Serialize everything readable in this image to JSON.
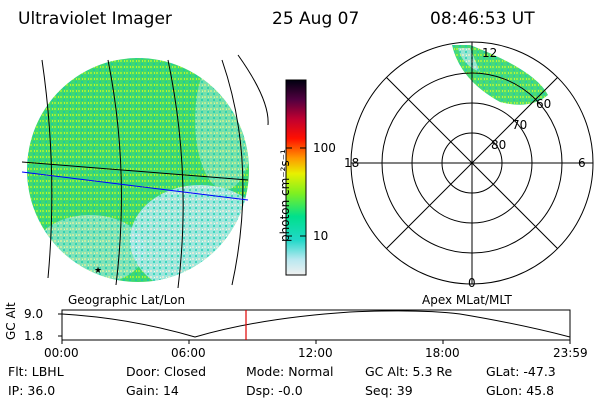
{
  "header": {
    "instrument": "Ultraviolet Imager",
    "date": "25 Aug 07",
    "time": "08:46:53 UT"
  },
  "colorbar": {
    "unit_label": "photon cm⁻²s⁻¹",
    "ticks": [
      "100",
      "10"
    ],
    "scale": "log",
    "colors": [
      "#e0e0e0",
      "#00c8c8",
      "#00e08c",
      "#80ff20",
      "#e8f000",
      "#ff9000",
      "#ff0000",
      "#b00030",
      "#400040",
      "#000000"
    ]
  },
  "left_panel": {
    "label": "Geographic Lat/Lon",
    "marker": "★"
  },
  "polar_panel": {
    "label": "Apex MLat/MLT",
    "mlt_labels": {
      "top": "12",
      "left": "18",
      "right": "6",
      "bottom": "0"
    },
    "lat_labels": [
      "80",
      "70",
      "60"
    ]
  },
  "altitude_plot": {
    "ylabel": "GC Alt",
    "y_ticks": [
      "9.0",
      "1.8"
    ],
    "x_ticks": [
      "00:00",
      "06:00",
      "12:00",
      "18:00",
      "23:59"
    ]
  },
  "status": {
    "row1": [
      {
        "key": "Flt:",
        "value": "LBHL"
      },
      {
        "key": "Door:",
        "value": "Closed"
      },
      {
        "key": "Mode:",
        "value": "Normal"
      },
      {
        "key": "GC Alt:",
        "value": "5.3 Re"
      },
      {
        "key": "GLat:",
        "value": "-47.3"
      }
    ],
    "row2": [
      {
        "key": "IP:",
        "value": "36.0"
      },
      {
        "key": "Gain:",
        "value": "14"
      },
      {
        "key": "Dsp:",
        "value": "-0.0"
      },
      {
        "key": "Seq:",
        "value": "39"
      },
      {
        "key": "GLon:",
        "value": "45.8"
      }
    ]
  }
}
